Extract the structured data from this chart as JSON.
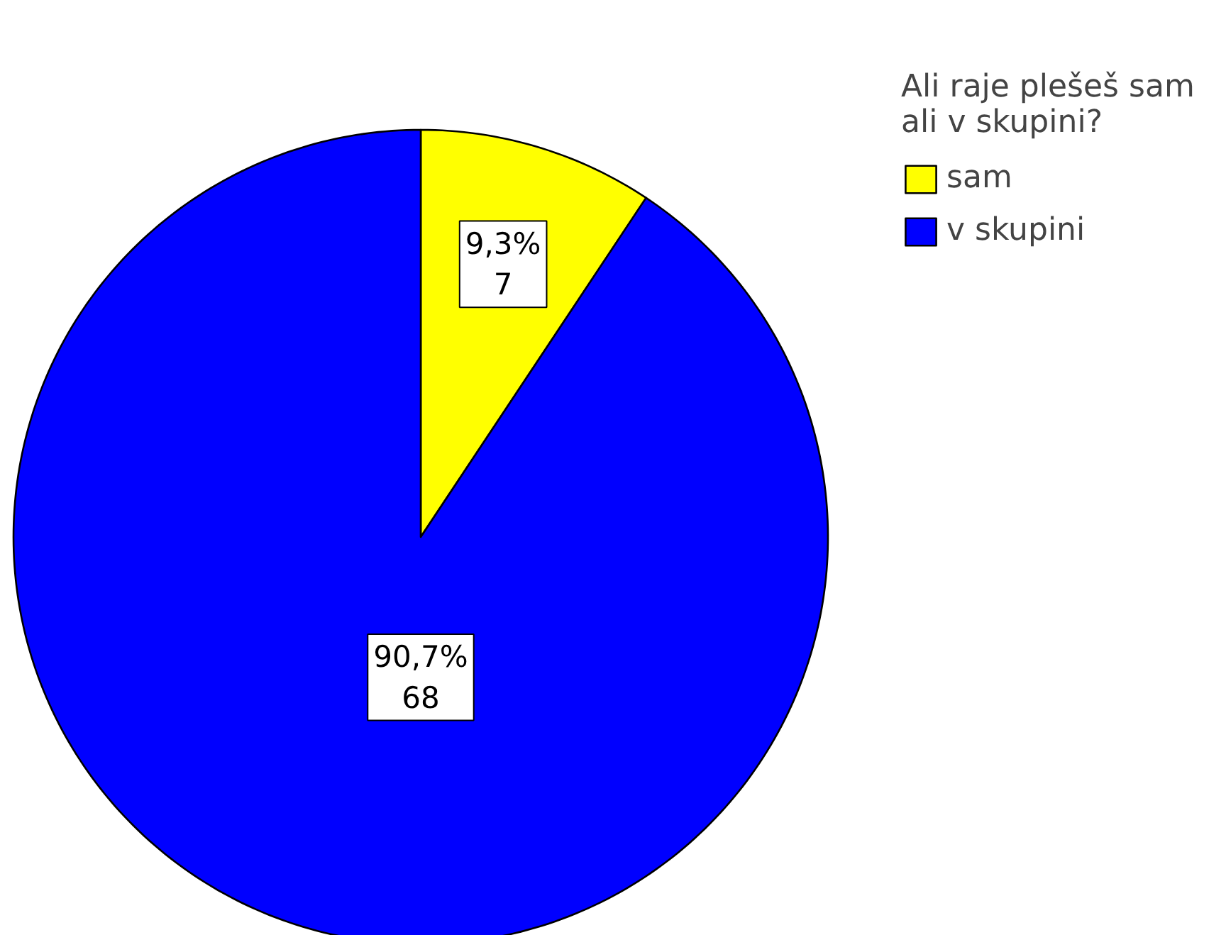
{
  "chart_data": {
    "type": "pie",
    "legend_title": "Ali raje plešeš sam ali v skupini?",
    "categories": [
      "sam",
      "v skupini"
    ],
    "values": [
      7,
      68
    ],
    "colors": [
      "#ffff00",
      "#0000ff"
    ],
    "value_labels": [
      "9,3%\n7",
      "90,7%\n68"
    ],
    "legend": "top right"
  }
}
